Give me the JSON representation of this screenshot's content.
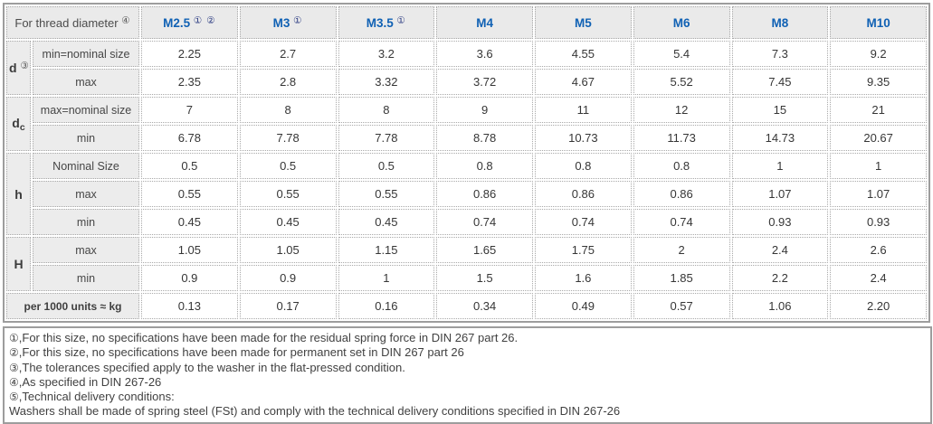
{
  "table": {
    "corner_header": {
      "label": "For thread diameter",
      "ref": "④"
    },
    "columns": [
      {
        "label": "M2.5",
        "refs": "① ②"
      },
      {
        "label": "M3",
        "refs": "①"
      },
      {
        "label": "M3.5",
        "refs": "①"
      },
      {
        "label": "M4",
        "refs": ""
      },
      {
        "label": "M5",
        "refs": ""
      },
      {
        "label": "M6",
        "refs": ""
      },
      {
        "label": "M8",
        "refs": ""
      },
      {
        "label": "M10",
        "refs": ""
      }
    ],
    "groups": [
      {
        "name": "d",
        "sub": "",
        "ref": "③",
        "rows": [
          {
            "label": "min=nominal size",
            "values": [
              "2.25",
              "2.7",
              "3.2",
              "3.6",
              "4.55",
              "5.4",
              "7.3",
              "9.2"
            ]
          },
          {
            "label": "max",
            "values": [
              "2.35",
              "2.8",
              "3.32",
              "3.72",
              "4.67",
              "5.52",
              "7.45",
              "9.35"
            ]
          }
        ]
      },
      {
        "name": "d",
        "sub": "c",
        "ref": "",
        "rows": [
          {
            "label": "max=nominal size",
            "values": [
              "7",
              "8",
              "8",
              "9",
              "11",
              "12",
              "15",
              "21"
            ]
          },
          {
            "label": "min",
            "values": [
              "6.78",
              "7.78",
              "7.78",
              "8.78",
              "10.73",
              "11.73",
              "14.73",
              "20.67"
            ]
          }
        ]
      },
      {
        "name": "h",
        "sub": "",
        "ref": "",
        "rows": [
          {
            "label": "Nominal Size",
            "values": [
              "0.5",
              "0.5",
              "0.5",
              "0.8",
              "0.8",
              "0.8",
              "1",
              "1"
            ]
          },
          {
            "label": "max",
            "values": [
              "0.55",
              "0.55",
              "0.55",
              "0.86",
              "0.86",
              "0.86",
              "1.07",
              "1.07"
            ]
          },
          {
            "label": "min",
            "values": [
              "0.45",
              "0.45",
              "0.45",
              "0.74",
              "0.74",
              "0.74",
              "0.93",
              "0.93"
            ]
          }
        ]
      },
      {
        "name": "H",
        "sub": "",
        "ref": "",
        "rows": [
          {
            "label": "max",
            "values": [
              "1.05",
              "1.05",
              "1.15",
              "1.65",
              "1.75",
              "2",
              "2.4",
              "2.6"
            ]
          },
          {
            "label": "min",
            "values": [
              "0.9",
              "0.9",
              "1",
              "1.5",
              "1.6",
              "1.85",
              "2.2",
              "2.4"
            ]
          }
        ]
      }
    ],
    "weight_row": {
      "label": "per 1000 units ≈ kg",
      "values": [
        "0.13",
        "0.17",
        "0.16",
        "0.34",
        "0.49",
        "0.57",
        "1.06",
        "2.20"
      ]
    }
  },
  "footnotes": {
    "lines": [
      {
        "ref": "①",
        "text": ",For this size, no specifications have been made for the residual spring force in DIN 267 part 26."
      },
      {
        "ref": "②",
        "text": ",For this size, no specifications have been made for permanent set in DIN 267 part 26"
      },
      {
        "ref": "③",
        "text": ",The tolerances specified apply to the washer in the flat-pressed condition."
      },
      {
        "ref": "④",
        "text": ",As specified in DIN 267-26"
      },
      {
        "ref": "⑤",
        "text": ",Technical delivery conditions:"
      },
      {
        "ref": "",
        "text": "Washers shall be made of spring steel (FSt) and comply with the technical delivery conditions specified in DIN 267-26"
      }
    ]
  },
  "colors": {
    "header_blue": "#1061b4",
    "ref_navy": "#2c3c82",
    "corner_bg": "#d9d9d9",
    "colhead_bg": "#eaeaea",
    "label_bg": "#ececec",
    "border_solid": "#9d9d9d",
    "border_dotted": "#a9a9a9",
    "text": "#3d3d3d"
  }
}
